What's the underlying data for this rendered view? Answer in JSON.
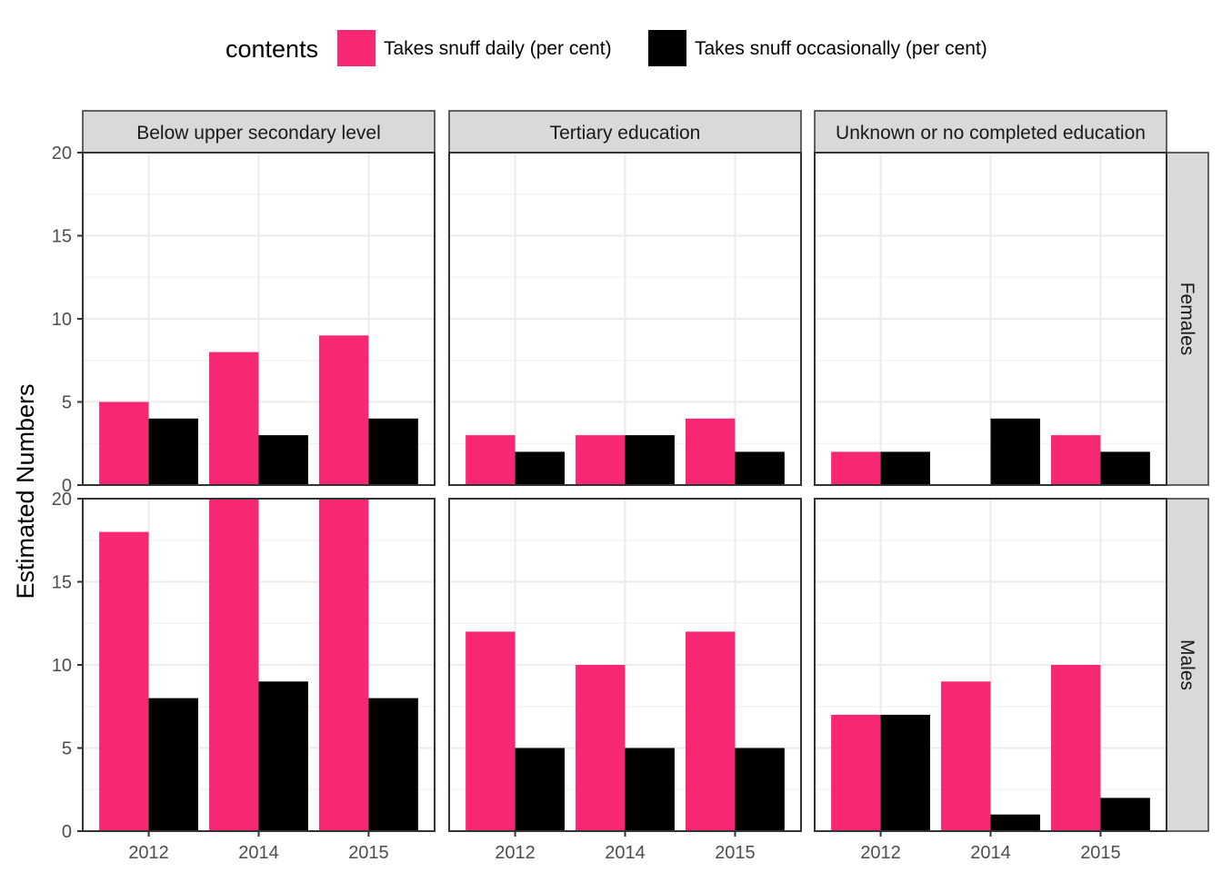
{
  "chart_data": {
    "type": "bar",
    "facet_columns": [
      "Below upper secondary level",
      "Tertiary education",
      "Unknown or no completed education"
    ],
    "facet_rows": [
      "Females",
      "Males"
    ],
    "categories": [
      "2012",
      "2014",
      "2015"
    ],
    "ylabel": "Estimated Numbers",
    "xlabel": "",
    "ylim": [
      0,
      20
    ],
    "yticks": [
      0,
      5,
      10,
      15,
      20
    ],
    "grid": true,
    "legend": {
      "title": "contents",
      "position": "top",
      "entries": [
        "Takes snuff daily (per cent)",
        "Takes snuff occasionally (per cent)"
      ]
    },
    "series_colors": [
      "#f72773",
      "#000000"
    ],
    "panels": [
      {
        "row": "Females",
        "column": "Below upper secondary level",
        "series": [
          {
            "name": "Takes snuff daily (per cent)",
            "values": [
              5,
              8,
              9
            ]
          },
          {
            "name": "Takes snuff occasionally (per cent)",
            "values": [
              4,
              3,
              4
            ]
          }
        ]
      },
      {
        "row": "Females",
        "column": "Tertiary education",
        "series": [
          {
            "name": "Takes snuff daily (per cent)",
            "values": [
              3,
              3,
              4
            ]
          },
          {
            "name": "Takes snuff occasionally (per cent)",
            "values": [
              2,
              3,
              2
            ]
          }
        ]
      },
      {
        "row": "Females",
        "column": "Unknown or no completed education",
        "series": [
          {
            "name": "Takes snuff daily (per cent)",
            "values": [
              2,
              null,
              3
            ]
          },
          {
            "name": "Takes snuff occasionally (per cent)",
            "values": [
              2,
              4,
              2
            ]
          }
        ]
      },
      {
        "row": "Males",
        "column": "Below upper secondary level",
        "series": [
          {
            "name": "Takes snuff daily (per cent)",
            "values": [
              18,
              20,
              20
            ]
          },
          {
            "name": "Takes snuff occasionally (per cent)",
            "values": [
              8,
              9,
              8
            ]
          }
        ]
      },
      {
        "row": "Males",
        "column": "Tertiary education",
        "series": [
          {
            "name": "Takes snuff daily (per cent)",
            "values": [
              12,
              10,
              12
            ]
          },
          {
            "name": "Takes snuff occasionally (per cent)",
            "values": [
              5,
              5,
              5
            ]
          }
        ]
      },
      {
        "row": "Males",
        "column": "Unknown or no completed education",
        "series": [
          {
            "name": "Takes snuff daily (per cent)",
            "values": [
              7,
              9,
              10
            ]
          },
          {
            "name": "Takes snuff occasionally (per cent)",
            "values": [
              7,
              1,
              2
            ]
          }
        ]
      }
    ]
  }
}
